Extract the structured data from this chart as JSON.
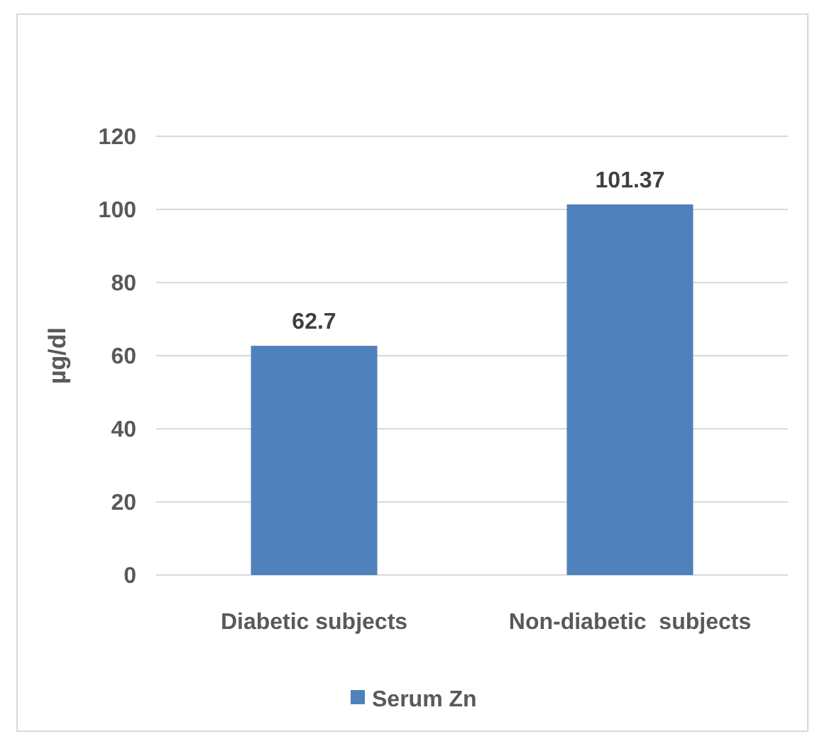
{
  "chart_data": {
    "type": "bar",
    "ylabel": "µg/dl",
    "categories": [
      "Diabetic subjects",
      "Non-diabetic  subjects"
    ],
    "series": [
      {
        "name": "Serum Zn",
        "color": "#4f81bd",
        "values": [
          62.7,
          101.37
        ]
      }
    ],
    "ylim": [
      0,
      120
    ],
    "yticks": [
      0,
      20,
      40,
      60,
      80,
      100,
      120
    ],
    "grid": "y",
    "legend": "bottom",
    "data_labels": true
  }
}
